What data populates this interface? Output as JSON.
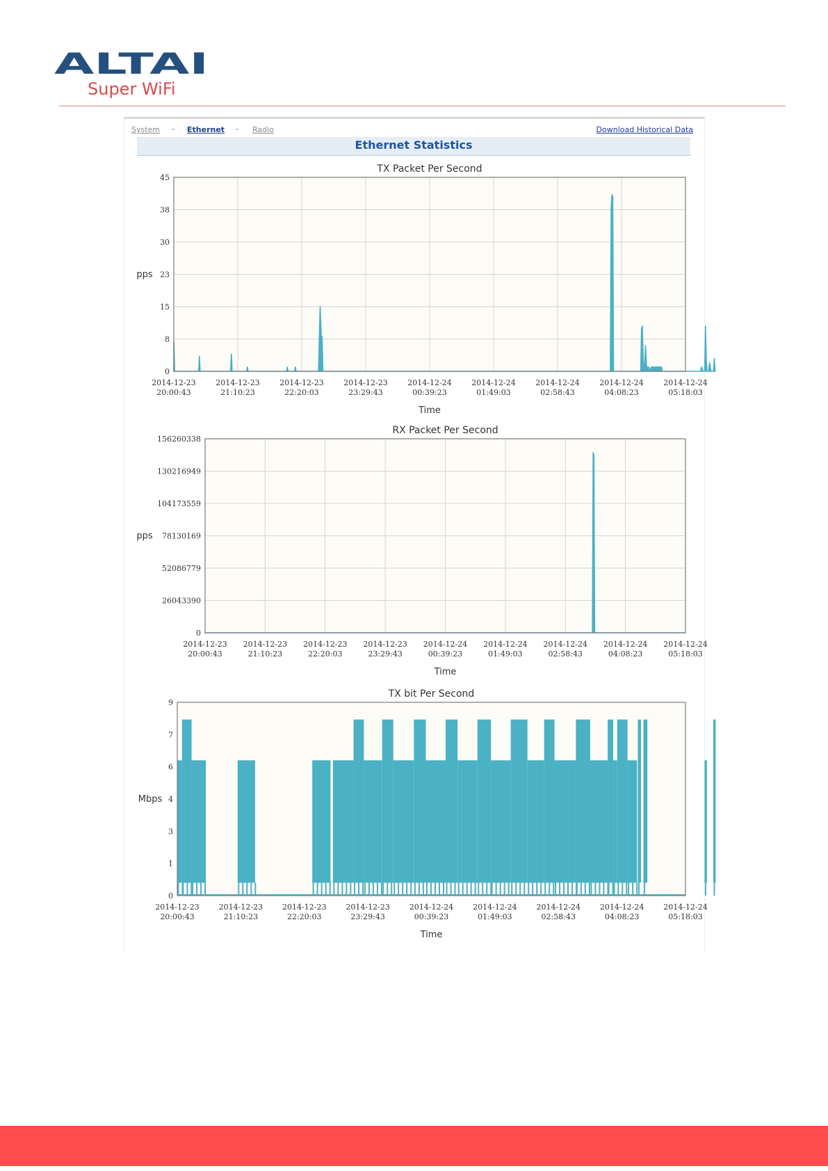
{
  "logo": {
    "brand": "ALTAI",
    "tagline": "Super WiFi"
  },
  "nav": {
    "tabs": [
      {
        "label": "System",
        "active": false
      },
      {
        "label": "Ethernet",
        "active": true
      },
      {
        "label": "Radio",
        "active": false
      }
    ],
    "separator": "-",
    "download_label": "Download Historical Data"
  },
  "section_title": "Ethernet Statistics",
  "colors": {
    "series": "#4bb1c4",
    "plot_bg": "#fdfcf6",
    "grid": "#d6d6d6",
    "footer": "#ff4c4f"
  },
  "chart_data": [
    {
      "type": "area",
      "title": "TX Packet Per Second",
      "xlabel": "Time",
      "ylabel": "pps",
      "grid": true,
      "x_ticks": [
        "2014-12-23 20:00:43",
        "2014-12-23 21:10:23",
        "2014-12-23 22:20:03",
        "2014-12-23 23:29:43",
        "2014-12-24 00:39:23",
        "2014-12-24 01:49:03",
        "2014-12-24 02:58:43",
        "2014-12-24 04:08:23",
        "2014-12-24 05:18:03"
      ],
      "y_ticks": [
        "0",
        "8",
        "15",
        "23",
        "30",
        "38",
        "45"
      ],
      "ylim": [
        0,
        45
      ],
      "series": [
        {
          "points": [
            [
              0,
              7
            ],
            [
              0.15,
              6.5
            ],
            [
              1,
              0
            ],
            [
              31,
              0
            ],
            [
              32,
              3.5
            ],
            [
              33,
              0
            ],
            [
              71,
              0
            ],
            [
              72,
              4
            ],
            [
              73,
              0
            ],
            [
              91,
              0
            ],
            [
              92,
              1
            ],
            [
              93,
              0
            ],
            [
              141,
              0
            ],
            [
              142,
              1
            ],
            [
              143,
              0
            ],
            [
              151,
              0
            ],
            [
              152,
              1
            ],
            [
              153,
              0
            ],
            [
              181,
              0
            ],
            [
              182,
              8
            ],
            [
              183,
              15
            ],
            [
              184.5,
              8
            ],
            [
              185.5,
              8
            ],
            [
              186.5,
              0
            ],
            [
              546,
              0
            ],
            [
              547,
              38
            ],
            [
              548,
              41
            ],
            [
              549,
              40.5
            ],
            [
              550,
              0
            ],
            [
              584,
              0
            ],
            [
              585,
              10
            ],
            [
              586,
              10.5
            ],
            [
              587,
              3
            ],
            [
              588,
              0
            ],
            [
              589,
              2
            ],
            [
              590,
              6
            ],
            [
              591,
              2
            ],
            [
              592,
              0
            ],
            [
              593,
              1
            ],
            [
              594,
              1
            ],
            [
              595,
              0
            ],
            [
              597,
              1
            ],
            [
              610,
              1
            ],
            [
              611,
              0
            ],
            [
              659,
              0
            ],
            [
              660,
              1
            ],
            [
              662,
              0
            ],
            [
              664,
              0
            ],
            [
              665,
              10.5
            ],
            [
              666,
              3
            ],
            [
              667,
              0
            ],
            [
              669,
              0
            ],
            [
              670,
              2
            ],
            [
              671,
              1
            ],
            [
              672,
              0
            ],
            [
              675,
              0
            ],
            [
              676,
              3
            ],
            [
              677,
              0
            ]
          ]
        }
      ]
    },
    {
      "type": "area",
      "title": "RX Packet Per Second",
      "xlabel": "Time",
      "ylabel": "pps",
      "grid": true,
      "x_ticks": [
        "2014-12-23 20:00:43",
        "2014-12-23 21:10:23",
        "2014-12-23 22:20:03",
        "2014-12-23 23:29:43",
        "2014-12-24 00:39:23",
        "2014-12-24 01:49:03",
        "2014-12-24 02:58:43",
        "2014-12-24 04:08:23",
        "2014-12-24 05:18:03"
      ],
      "y_ticks": [
        "0",
        "26043390",
        "52086779",
        "78130169",
        "104173559",
        "130216949",
        "156260338"
      ],
      "ylim": [
        0,
        156260338
      ],
      "series": [
        {
          "points": [
            [
              0,
              0
            ],
            [
              516,
              0
            ],
            [
              517,
              145000000
            ],
            [
              518,
              143000000
            ],
            [
              519,
              0
            ],
            [
              640,
              0
            ]
          ]
        }
      ]
    },
    {
      "type": "area",
      "title": "TX bit Per Second",
      "xlabel": "Time",
      "ylabel": "Mbps",
      "grid": false,
      "x_ticks": [
        "2014-12-23 20:00:43",
        "2014-12-23 21:10:23",
        "2014-12-23 22:20:03",
        "2014-12-23 23:29:43",
        "2014-12-24 00:39:23",
        "2014-12-24 01:49:03",
        "2014-12-24 02:58:43",
        "2014-12-24 04:08:23",
        "2014-12-24 05:18:03"
      ],
      "y_ticks": [
        "0",
        "1",
        "3",
        "4",
        "6",
        "7",
        "9"
      ],
      "ylim": [
        0,
        9
      ],
      "bands": [
        {
          "x0": 0,
          "x1": 6,
          "high": 6.3
        },
        {
          "x0": 6,
          "x1": 18,
          "high": 8.2
        },
        {
          "x0": 18,
          "x1": 36,
          "high": 6.3
        },
        {
          "x0": 76,
          "x1": 98,
          "high": 6.3
        },
        {
          "x0": 170,
          "x1": 193,
          "high": 6.3
        },
        {
          "x0": 196,
          "x1": 222,
          "high": 6.3
        },
        {
          "x0": 222,
          "x1": 235,
          "high": 8.2
        },
        {
          "x0": 235,
          "x1": 258,
          "high": 6.3
        },
        {
          "x0": 258,
          "x1": 272,
          "high": 8.2
        },
        {
          "x0": 272,
          "x1": 298,
          "high": 6.3
        },
        {
          "x0": 298,
          "x1": 313,
          "high": 8.2
        },
        {
          "x0": 313,
          "x1": 338,
          "high": 6.3
        },
        {
          "x0": 338,
          "x1": 353,
          "high": 8.2
        },
        {
          "x0": 353,
          "x1": 378,
          "high": 6.3
        },
        {
          "x0": 378,
          "x1": 395,
          "high": 8.2
        },
        {
          "x0": 395,
          "x1": 420,
          "high": 6.3
        },
        {
          "x0": 420,
          "x1": 441,
          "high": 8.2
        },
        {
          "x0": 441,
          "x1": 462,
          "high": 6.3
        },
        {
          "x0": 462,
          "x1": 475,
          "high": 8.2
        },
        {
          "x0": 475,
          "x1": 502,
          "high": 6.3
        },
        {
          "x0": 502,
          "x1": 520,
          "high": 8.2
        },
        {
          "x0": 520,
          "x1": 542,
          "high": 6.3
        },
        {
          "x0": 542,
          "x1": 549,
          "high": 8.2
        },
        {
          "x0": 549,
          "x1": 554,
          "high": 6.3
        },
        {
          "x0": 554,
          "x1": 567,
          "high": 8.2
        },
        {
          "x0": 567,
          "x1": 579,
          "high": 6.3
        },
        {
          "x0": 580,
          "x1": 584,
          "high": 8.2
        },
        {
          "x0": 587,
          "x1": 592,
          "high": 8.2
        },
        {
          "x0": 664,
          "x1": 667,
          "high": 6.3
        },
        {
          "x0": 675,
          "x1": 678,
          "high": 8.2
        }
      ]
    }
  ]
}
